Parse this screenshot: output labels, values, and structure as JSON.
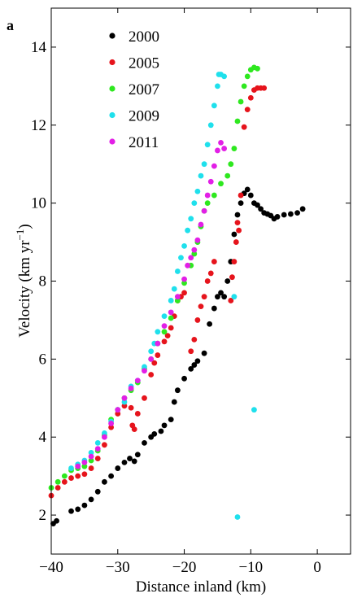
{
  "panel_label": "a",
  "chart_data": {
    "type": "scatter",
    "xlabel": "Distance inland (km)",
    "ylabel": "Velocity (km yr",
    "ylabel_sup": "−1",
    "ylabel_close": ")",
    "xlim": [
      -40,
      5
    ],
    "ylim": [
      1,
      15
    ],
    "xticks": [
      -40,
      -30,
      -20,
      -10,
      0
    ],
    "xtick_labels": [
      "−40",
      "−30",
      "−20",
      "−10",
      "0"
    ],
    "yticks": [
      2,
      4,
      6,
      8,
      10,
      12,
      14
    ],
    "ytick_labels": [
      "2",
      "4",
      "6",
      "8",
      "10",
      "12",
      "14"
    ],
    "grid": false,
    "legend_position": "top-left",
    "series": [
      {
        "name": "2000",
        "color": "#000000",
        "points": [
          [
            -39.7,
            1.78
          ],
          [
            -39.2,
            1.85
          ],
          [
            -37,
            2.1
          ],
          [
            -36,
            2.15
          ],
          [
            -35,
            2.25
          ],
          [
            -34,
            2.4
          ],
          [
            -33,
            2.6
          ],
          [
            -32,
            2.85
          ],
          [
            -31,
            3.0
          ],
          [
            -30,
            3.2
          ],
          [
            -29,
            3.35
          ],
          [
            -28.2,
            3.45
          ],
          [
            -27.5,
            3.38
          ],
          [
            -27,
            3.55
          ],
          [
            -26,
            3.85
          ],
          [
            -25,
            4.0
          ],
          [
            -24.5,
            4.08
          ],
          [
            -23.5,
            4.15
          ],
          [
            -23,
            4.3
          ],
          [
            -22,
            4.45
          ],
          [
            -21.5,
            4.9
          ],
          [
            -21,
            5.2
          ],
          [
            -20,
            5.5
          ],
          [
            -19,
            5.75
          ],
          [
            -18.5,
            5.85
          ],
          [
            -18,
            5.95
          ],
          [
            -17,
            6.15
          ],
          [
            -16.2,
            6.9
          ],
          [
            -15.5,
            7.3
          ],
          [
            -15,
            7.6
          ],
          [
            -14.5,
            7.7
          ],
          [
            -14,
            7.6
          ],
          [
            -13.5,
            8.0
          ],
          [
            -13,
            8.5
          ],
          [
            -12.5,
            9.2
          ],
          [
            -12,
            9.7
          ],
          [
            -11.5,
            10.0
          ],
          [
            -11,
            10.25
          ],
          [
            -10.5,
            10.35
          ],
          [
            -10,
            10.2
          ],
          [
            -9.5,
            10.0
          ],
          [
            -9,
            9.95
          ],
          [
            -8.5,
            9.85
          ],
          [
            -8,
            9.75
          ],
          [
            -7.5,
            9.72
          ],
          [
            -7,
            9.68
          ],
          [
            -6.5,
            9.6
          ],
          [
            -6,
            9.65
          ],
          [
            -5,
            9.7
          ],
          [
            -4,
            9.72
          ],
          [
            -3,
            9.75
          ],
          [
            -2.2,
            9.85
          ]
        ]
      },
      {
        "name": "2005",
        "color": "#e6141c",
        "points": [
          [
            -40,
            2.5
          ],
          [
            -39,
            2.7
          ],
          [
            -38,
            2.85
          ],
          [
            -37,
            2.95
          ],
          [
            -36,
            3.0
          ],
          [
            -35,
            3.05
          ],
          [
            -34,
            3.2
          ],
          [
            -33,
            3.45
          ],
          [
            -32,
            3.8
          ],
          [
            -31,
            4.25
          ],
          [
            -30,
            4.6
          ],
          [
            -29,
            4.8
          ],
          [
            -28,
            4.75
          ],
          [
            -27.8,
            4.3
          ],
          [
            -27.5,
            4.2
          ],
          [
            -27,
            4.6
          ],
          [
            -26,
            5.0
          ],
          [
            -25,
            5.6
          ],
          [
            -24.5,
            5.9
          ],
          [
            -24,
            6.1
          ],
          [
            -23,
            6.45
          ],
          [
            -22.5,
            6.6
          ],
          [
            -22,
            6.8
          ],
          [
            -21.5,
            7.1
          ],
          [
            -21,
            7.5
          ],
          [
            -20.5,
            7.6
          ],
          [
            -20,
            7.7
          ],
          [
            -19,
            6.2
          ],
          [
            -18.5,
            6.5
          ],
          [
            -18,
            7.0
          ],
          [
            -17.5,
            7.35
          ],
          [
            -17,
            7.6
          ],
          [
            -16.5,
            8.0
          ],
          [
            -16,
            8.2
          ],
          [
            -15.5,
            8.5
          ],
          [
            -13,
            7.5
          ],
          [
            -12.8,
            8.1
          ],
          [
            -12.5,
            8.5
          ],
          [
            -12.2,
            9.0
          ],
          [
            -12,
            9.5
          ],
          [
            -11.8,
            9.3
          ],
          [
            -11.5,
            10.2
          ],
          [
            -11,
            11.95
          ],
          [
            -10.5,
            12.4
          ],
          [
            -10,
            12.7
          ],
          [
            -9.5,
            12.9
          ],
          [
            -9,
            12.95
          ],
          [
            -8.5,
            12.95
          ],
          [
            -8,
            12.95
          ]
        ]
      },
      {
        "name": "2007",
        "color": "#2ee81f",
        "points": [
          [
            -40,
            2.7
          ],
          [
            -39,
            2.85
          ],
          [
            -38,
            3.0
          ],
          [
            -37,
            3.15
          ],
          [
            -36,
            3.2
          ],
          [
            -35,
            3.25
          ],
          [
            -34,
            3.4
          ],
          [
            -33,
            3.65
          ],
          [
            -32,
            4.05
          ],
          [
            -31,
            4.45
          ],
          [
            -30,
            4.7
          ],
          [
            -29,
            5.0
          ],
          [
            -28,
            5.2
          ],
          [
            -27,
            5.4
          ],
          [
            -26,
            5.75
          ],
          [
            -25,
            6.0
          ],
          [
            -24,
            6.4
          ],
          [
            -23,
            6.7
          ],
          [
            -22,
            7.05
          ],
          [
            -21,
            7.5
          ],
          [
            -20,
            7.95
          ],
          [
            -19,
            8.4
          ],
          [
            -18.5,
            8.7
          ],
          [
            -18,
            9.0
          ],
          [
            -17.5,
            9.4
          ],
          [
            -17,
            9.8
          ],
          [
            -16.5,
            10.0
          ],
          [
            -15.5,
            10.2
          ],
          [
            -14.5,
            10.5
          ],
          [
            -13.5,
            10.7
          ],
          [
            -13,
            11.0
          ],
          [
            -12.5,
            11.4
          ],
          [
            -12,
            12.1
          ],
          [
            -11.5,
            12.6
          ],
          [
            -11,
            13.0
          ],
          [
            -10.5,
            13.25
          ],
          [
            -10,
            13.42
          ],
          [
            -9.5,
            13.48
          ],
          [
            -9,
            13.45
          ]
        ]
      },
      {
        "name": "2009",
        "color": "#1fe0ec",
        "points": [
          [
            -37,
            3.2
          ],
          [
            -36,
            3.3
          ],
          [
            -35,
            3.4
          ],
          [
            -34,
            3.6
          ],
          [
            -33,
            3.85
          ],
          [
            -32,
            4.1
          ],
          [
            -31,
            4.4
          ],
          [
            -30,
            4.7
          ],
          [
            -29,
            4.9
          ],
          [
            -28,
            5.3
          ],
          [
            -27,
            5.45
          ],
          [
            -26,
            5.8
          ],
          [
            -25,
            6.2
          ],
          [
            -24.5,
            6.4
          ],
          [
            -24,
            6.7
          ],
          [
            -23,
            7.1
          ],
          [
            -22,
            7.5
          ],
          [
            -21.5,
            7.8
          ],
          [
            -21,
            8.25
          ],
          [
            -20.5,
            8.6
          ],
          [
            -20,
            8.9
          ],
          [
            -19.5,
            9.3
          ],
          [
            -19,
            9.6
          ],
          [
            -18.5,
            10.0
          ],
          [
            -18,
            10.3
          ],
          [
            -17.5,
            10.7
          ],
          [
            -17,
            11.0
          ],
          [
            -16.5,
            11.5
          ],
          [
            -16,
            12.0
          ],
          [
            -15.5,
            12.5
          ],
          [
            -15,
            13.0
          ],
          [
            -14.8,
            13.3
          ],
          [
            -14.5,
            13.3
          ],
          [
            -14,
            13.25
          ],
          [
            -12.5,
            7.6
          ],
          [
            -12,
            1.95
          ],
          [
            -9.5,
            4.7
          ]
        ]
      },
      {
        "name": "2011",
        "color": "#e21fe6",
        "points": [
          [
            -36,
            3.25
          ],
          [
            -35,
            3.35
          ],
          [
            -34,
            3.5
          ],
          [
            -33,
            3.7
          ],
          [
            -32,
            4.0
          ],
          [
            -31,
            4.35
          ],
          [
            -30,
            4.7
          ],
          [
            -29,
            5.0
          ],
          [
            -28,
            5.25
          ],
          [
            -27,
            5.45
          ],
          [
            -26,
            5.7
          ],
          [
            -25,
            6.0
          ],
          [
            -24,
            6.4
          ],
          [
            -23,
            6.85
          ],
          [
            -22,
            7.2
          ],
          [
            -21,
            7.6
          ],
          [
            -20,
            8.05
          ],
          [
            -19.5,
            8.4
          ],
          [
            -19,
            8.6
          ],
          [
            -18.5,
            8.8
          ],
          [
            -18,
            9.05
          ],
          [
            -17.5,
            9.45
          ],
          [
            -17,
            9.8
          ],
          [
            -16.5,
            10.2
          ],
          [
            -16,
            10.55
          ],
          [
            -15.5,
            10.95
          ],
          [
            -15,
            11.35
          ],
          [
            -14.5,
            11.55
          ],
          [
            -14,
            11.4
          ]
        ]
      }
    ]
  }
}
